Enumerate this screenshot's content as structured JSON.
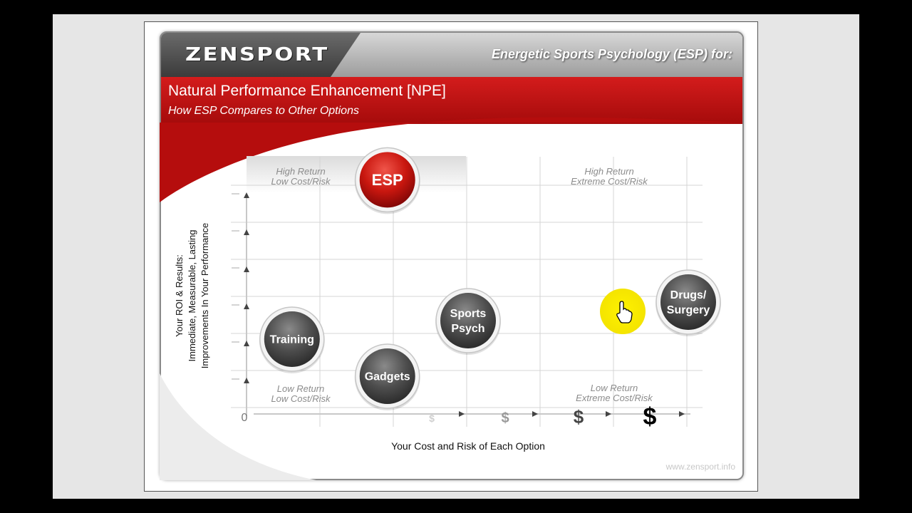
{
  "header": {
    "logo_text": "ZENSPORT",
    "tagline": "Energetic Sports Psychology (ESP) for:",
    "title": "Natural Performance Enhancement [NPE]",
    "subtitle": "How ESP Compares to Other Options"
  },
  "footer": {
    "url": "www.zensport.info"
  },
  "colors": {
    "accent_red": "#c0110f",
    "bubble_gray": "#555555",
    "cursor_highlight": "#f4ea06"
  },
  "chart_data": {
    "type": "scatter",
    "xlabel": "Your Cost and Risk of Each Option",
    "ylabel_lines": [
      "Your ROI & Results:",
      "Immediate, Measurable, Lasting",
      "Improvements In Your Performance"
    ],
    "origin_label": "0",
    "x_tick_labels": [
      "$",
      "$",
      "$",
      "$"
    ],
    "quadrant_labels": [
      {
        "lines": [
          "High Return",
          "Low Cost/Risk"
        ],
        "position": "top-left"
      },
      {
        "lines": [
          "High Return",
          "Extreme Cost/Risk"
        ],
        "position": "top-right"
      },
      {
        "lines": [
          "Low Return",
          "Low Cost/Risk"
        ],
        "position": "bottom-left"
      },
      {
        "lines": [
          "Low Return",
          "Extreme Cost/Risk"
        ],
        "position": "bottom-right"
      }
    ],
    "points": [
      {
        "lines": [
          "ESP"
        ],
        "x": 1.9,
        "y": 6.3,
        "style": "red"
      },
      {
        "lines": [
          "Training"
        ],
        "x": 0.6,
        "y": 2.0,
        "style": "gray"
      },
      {
        "lines": [
          "Gadgets"
        ],
        "x": 1.9,
        "y": 1.0,
        "style": "gray"
      },
      {
        "lines": [
          "Sports",
          "Psych"
        ],
        "x": 3.0,
        "y": 2.5,
        "style": "gray"
      },
      {
        "lines": [
          "Drugs/",
          "Surgery"
        ],
        "x": 6.0,
        "y": 3.0,
        "style": "gray"
      }
    ],
    "grid": true
  }
}
